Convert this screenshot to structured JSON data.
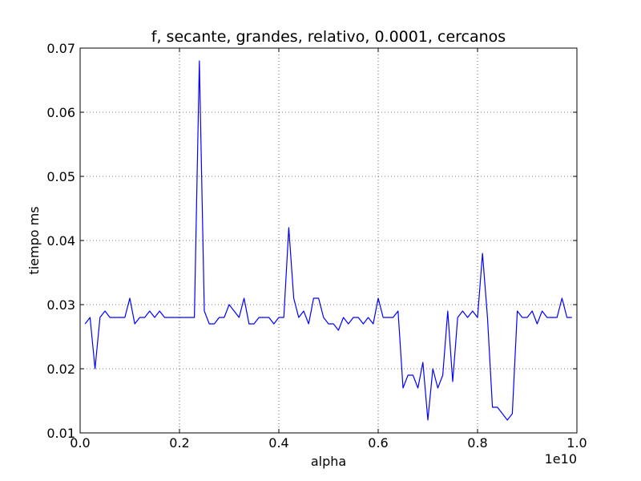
{
  "chart_data": {
    "type": "line",
    "title": "f, secante, grandes, relativo, 0.0001, cercanos",
    "xlabel": "alpha",
    "ylabel": "tiempo ms",
    "x_offset_label": "1e10",
    "xlim": [
      0.0,
      1.0
    ],
    "ylim": [
      0.01,
      0.07
    ],
    "x_ticks": [
      0.0,
      0.2,
      0.4,
      0.6,
      0.8,
      1.0
    ],
    "x_tick_labels": [
      "0.0",
      "0.2",
      "0.4",
      "0.6",
      "0.8",
      "1.0"
    ],
    "y_ticks": [
      0.01,
      0.02,
      0.03,
      0.04,
      0.05,
      0.06,
      0.07
    ],
    "y_tick_labels": [
      "0.01",
      "0.02",
      "0.03",
      "0.04",
      "0.05",
      "0.06",
      "0.07"
    ],
    "grid": true,
    "grid_style": "dotted",
    "series": [
      {
        "color": "#0000ff",
        "x": [
          0.01,
          0.02,
          0.03,
          0.04,
          0.05,
          0.06,
          0.07,
          0.08,
          0.09,
          0.1,
          0.11,
          0.12,
          0.13,
          0.14,
          0.15,
          0.16,
          0.17,
          0.18,
          0.19,
          0.2,
          0.21,
          0.22,
          0.23,
          0.24,
          0.25,
          0.26,
          0.27,
          0.28,
          0.29,
          0.3,
          0.31,
          0.32,
          0.33,
          0.34,
          0.35,
          0.36,
          0.37,
          0.38,
          0.39,
          0.4,
          0.41,
          0.42,
          0.43,
          0.44,
          0.45,
          0.46,
          0.47,
          0.48,
          0.49,
          0.5,
          0.51,
          0.52,
          0.53,
          0.54,
          0.55,
          0.56,
          0.57,
          0.58,
          0.59,
          0.6,
          0.61,
          0.62,
          0.63,
          0.64,
          0.65,
          0.66,
          0.67,
          0.68,
          0.69,
          0.7,
          0.71,
          0.72,
          0.73,
          0.74,
          0.75,
          0.76,
          0.77,
          0.78,
          0.79,
          0.8,
          0.81,
          0.82,
          0.83,
          0.84,
          0.85,
          0.86,
          0.87,
          0.88,
          0.89,
          0.9,
          0.91,
          0.92,
          0.93,
          0.94,
          0.95,
          0.96,
          0.97,
          0.98,
          0.99
        ],
        "y": [
          0.027,
          0.028,
          0.02,
          0.028,
          0.029,
          0.028,
          0.028,
          0.028,
          0.028,
          0.031,
          0.027,
          0.028,
          0.028,
          0.029,
          0.028,
          0.029,
          0.028,
          0.028,
          0.028,
          0.028,
          0.028,
          0.028,
          0.028,
          0.068,
          0.029,
          0.027,
          0.027,
          0.028,
          0.028,
          0.03,
          0.029,
          0.028,
          0.031,
          0.027,
          0.027,
          0.028,
          0.028,
          0.028,
          0.027,
          0.028,
          0.028,
          0.042,
          0.031,
          0.028,
          0.029,
          0.027,
          0.031,
          0.031,
          0.028,
          0.027,
          0.027,
          0.026,
          0.028,
          0.027,
          0.028,
          0.028,
          0.027,
          0.028,
          0.027,
          0.031,
          0.028,
          0.028,
          0.028,
          0.029,
          0.017,
          0.019,
          0.019,
          0.017,
          0.021,
          0.012,
          0.02,
          0.017,
          0.019,
          0.029,
          0.018,
          0.028,
          0.029,
          0.028,
          0.029,
          0.028,
          0.038,
          0.028,
          0.014,
          0.014,
          0.013,
          0.012,
          0.013,
          0.029,
          0.028,
          0.028,
          0.029,
          0.027,
          0.029,
          0.028,
          0.028,
          0.028,
          0.031,
          0.028,
          0.028
        ]
      }
    ]
  }
}
